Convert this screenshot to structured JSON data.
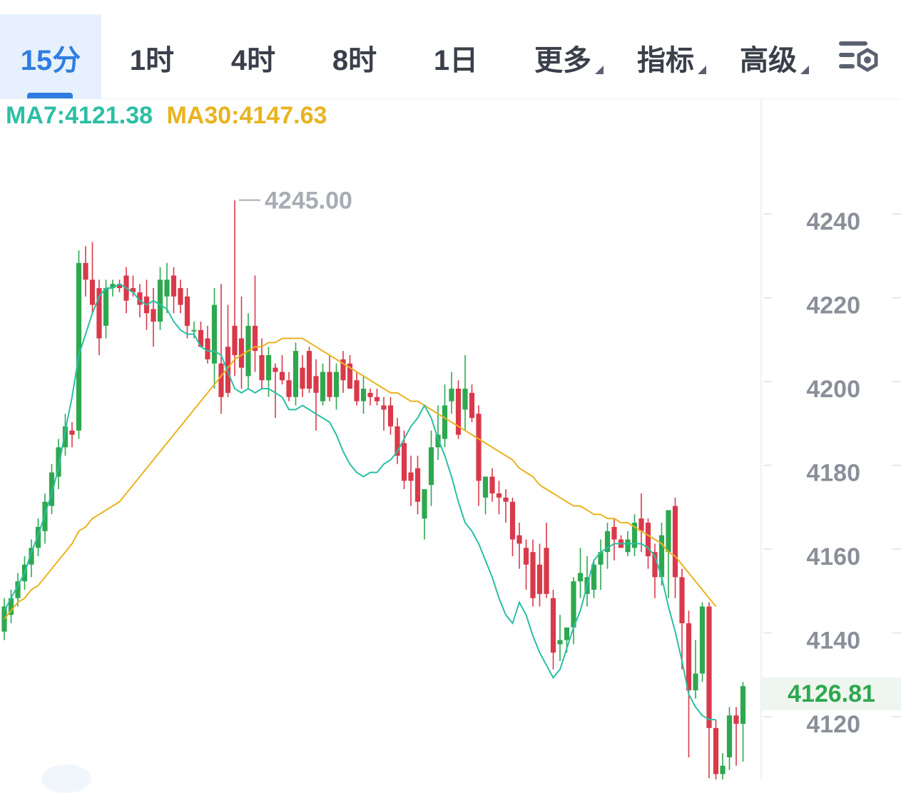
{
  "tabs": [
    {
      "label": "15分",
      "active": true
    },
    {
      "label": "1时"
    },
    {
      "label": "4时"
    },
    {
      "label": "8时"
    },
    {
      "label": "1日"
    },
    {
      "label": "更多",
      "dropdown": true
    },
    {
      "label": "指标",
      "dropdown": true
    },
    {
      "label": "高级",
      "dropdown": true
    }
  ],
  "settings_icon": "chart-settings-icon",
  "ma_legend": {
    "ma7": "MA7:4121.38",
    "ma30": "MA30:4147.63"
  },
  "colors": {
    "up": "#2ea84f",
    "down": "#d9394a",
    "ma7": "#2bbfa4",
    "ma30": "#e9b320",
    "active_tab": "#2f7de1"
  },
  "chart_data": {
    "type": "candlestick",
    "interval": "15分",
    "y_ticks": [
      4120,
      4140,
      4160,
      4180,
      4200,
      4220,
      4240
    ],
    "ylim": [
      4108,
      4252
    ],
    "last_price": "4126.81",
    "high_marker": "4245.00",
    "series": [
      {
        "name": "MA7",
        "values": [
          4147,
          4150,
          4153,
          4156,
          4161,
          4165,
          4170,
          4175,
          4181,
          4190,
          4198,
          4208,
          4213,
          4218,
          4222,
          4224,
          4224,
          4225,
          4224,
          4223,
          4221,
          4220,
          4221,
          4220,
          4219,
          4216,
          4214,
          4213,
          4213,
          4210,
          4209,
          4209,
          4208,
          4204,
          4200,
          4199,
          4200,
          4199,
          4200,
          4200,
          4199,
          4198,
          4195,
          4195,
          4196,
          4195,
          4194,
          4193,
          4192,
          4189,
          4185,
          4182,
          4180,
          4179,
          4180,
          4180,
          4182,
          4183,
          4185,
          4188,
          4191,
          4193,
          4196,
          4193,
          4188,
          4184,
          4179,
          4173,
          4168,
          4166,
          4163,
          4159,
          4155,
          4150,
          4146,
          4144,
          4149,
          4146,
          4141,
          4137,
          4134,
          4131,
          4133,
          4138,
          4143,
          4147,
          4153,
          4159,
          4161,
          4162,
          4163,
          4163,
          4163,
          4163,
          4163,
          4162,
          4160,
          4155,
          4148,
          4142,
          4135,
          4127,
          4124,
          4122,
          4121,
          4121
        ]
      },
      {
        "name": "MA30",
        "values": [
          4145,
          4147,
          4149,
          4150,
          4152,
          4153,
          4155,
          4157,
          4159,
          4161,
          4163,
          4166,
          4167,
          4169,
          4170,
          4171,
          4172,
          4173,
          4175,
          4177,
          4179,
          4181,
          4183,
          4185,
          4187,
          4189,
          4191,
          4193,
          4195,
          4197,
          4199,
          4201,
          4203,
          4205,
          4207,
          4208,
          4209,
          4210,
          4210,
          4211,
          4211,
          4212,
          4212,
          4212,
          4212,
          4211,
          4210,
          4209,
          4208,
          4207,
          4206,
          4205,
          4204,
          4203,
          4202,
          4201,
          4200,
          4199,
          4199,
          4198,
          4197,
          4197,
          4196,
          4195,
          4194,
          4193,
          4192,
          4191,
          4190,
          4189,
          4188,
          4187,
          4186,
          4185,
          4184,
          4183,
          4181,
          4180,
          4179,
          4177,
          4176,
          4175,
          4174,
          4173,
          4172,
          4172,
          4171,
          4170,
          4170,
          4169,
          4169,
          4168,
          4168,
          4167,
          4166,
          4165,
          4164,
          4163,
          4161,
          4160,
          4158,
          4156,
          4154,
          4152,
          4150,
          4148
        ]
      }
    ],
    "candles": [
      {
        "o": 4142,
        "h": 4150,
        "l": 4140,
        "c": 4148
      },
      {
        "o": 4146,
        "h": 4152,
        "l": 4144,
        "c": 4150
      },
      {
        "o": 4150,
        "h": 4156,
        "l": 4148,
        "c": 4154
      },
      {
        "o": 4154,
        "h": 4160,
        "l": 4152,
        "c": 4158
      },
      {
        "o": 4158,
        "h": 4164,
        "l": 4155,
        "c": 4162
      },
      {
        "o": 4162,
        "h": 4169,
        "l": 4160,
        "c": 4167
      },
      {
        "o": 4166,
        "h": 4175,
        "l": 4163,
        "c": 4173
      },
      {
        "o": 4172,
        "h": 4182,
        "l": 4170,
        "c": 4180
      },
      {
        "o": 4179,
        "h": 4188,
        "l": 4176,
        "c": 4186
      },
      {
        "o": 4186,
        "h": 4194,
        "l": 4184,
        "c": 4191
      },
      {
        "o": 4190,
        "h": 4192,
        "l": 4186,
        "c": 4189
      },
      {
        "o": 4190,
        "h": 4233,
        "l": 4188,
        "c": 4230
      },
      {
        "o": 4230,
        "h": 4234,
        "l": 4222,
        "c": 4226
      },
      {
        "o": 4226,
        "h": 4235,
        "l": 4218,
        "c": 4220
      },
      {
        "o": 4224,
        "h": 4226,
        "l": 4208,
        "c": 4212
      },
      {
        "o": 4215,
        "h": 4226,
        "l": 4212,
        "c": 4224
      },
      {
        "o": 4224,
        "h": 4226,
        "l": 4222,
        "c": 4225
      },
      {
        "o": 4225,
        "h": 4226,
        "l": 4223,
        "c": 4224
      },
      {
        "o": 4227,
        "h": 4229,
        "l": 4218,
        "c": 4221
      },
      {
        "o": 4224,
        "h": 4227,
        "l": 4222,
        "c": 4223
      },
      {
        "o": 4223,
        "h": 4225,
        "l": 4217,
        "c": 4220
      },
      {
        "o": 4222,
        "h": 4226,
        "l": 4214,
        "c": 4218
      },
      {
        "o": 4219,
        "h": 4224,
        "l": 4210,
        "c": 4216
      },
      {
        "o": 4216,
        "h": 4229,
        "l": 4214,
        "c": 4226
      },
      {
        "o": 4222,
        "h": 4230,
        "l": 4218,
        "c": 4226
      },
      {
        "o": 4227,
        "h": 4229,
        "l": 4218,
        "c": 4222
      },
      {
        "o": 4224,
        "h": 4226,
        "l": 4218,
        "c": 4220
      },
      {
        "o": 4222,
        "h": 4224,
        "l": 4212,
        "c": 4215
      },
      {
        "o": 4214,
        "h": 4216,
        "l": 4212,
        "c": 4214
      },
      {
        "o": 4214,
        "h": 4216,
        "l": 4210,
        "c": 4210
      },
      {
        "o": 4212,
        "h": 4215,
        "l": 4206,
        "c": 4207
      },
      {
        "o": 4206,
        "h": 4224,
        "l": 4200,
        "c": 4220
      },
      {
        "o": 4206,
        "h": 4225,
        "l": 4194,
        "c": 4198
      },
      {
        "o": 4210,
        "h": 4220,
        "l": 4198,
        "c": 4199
      },
      {
        "o": 4215,
        "h": 4245,
        "l": 4203,
        "c": 4208
      },
      {
        "o": 4212,
        "h": 4222,
        "l": 4200,
        "c": 4205
      },
      {
        "o": 4203,
        "h": 4218,
        "l": 4200,
        "c": 4215
      },
      {
        "o": 4215,
        "h": 4227,
        "l": 4204,
        "c": 4209
      },
      {
        "o": 4208,
        "h": 4212,
        "l": 4200,
        "c": 4202
      },
      {
        "o": 4202,
        "h": 4210,
        "l": 4198,
        "c": 4208
      },
      {
        "o": 4205,
        "h": 4206,
        "l": 4193,
        "c": 4204
      },
      {
        "o": 4204,
        "h": 4208,
        "l": 4201,
        "c": 4202
      },
      {
        "o": 4202,
        "h": 4204,
        "l": 4197,
        "c": 4198
      },
      {
        "o": 4198,
        "h": 4211,
        "l": 4196,
        "c": 4209
      },
      {
        "o": 4205,
        "h": 4208,
        "l": 4198,
        "c": 4200
      },
      {
        "o": 4209,
        "h": 4210,
        "l": 4199,
        "c": 4200
      },
      {
        "o": 4203,
        "h": 4207,
        "l": 4190,
        "c": 4199
      },
      {
        "o": 4197,
        "h": 4206,
        "l": 4196,
        "c": 4204
      },
      {
        "o": 4204,
        "h": 4208,
        "l": 4197,
        "c": 4198
      },
      {
        "o": 4198,
        "h": 4206,
        "l": 4195,
        "c": 4204
      },
      {
        "o": 4207,
        "h": 4209,
        "l": 4199,
        "c": 4202
      },
      {
        "o": 4206,
        "h": 4208,
        "l": 4200,
        "c": 4200
      },
      {
        "o": 4202,
        "h": 4204,
        "l": 4196,
        "c": 4197
      },
      {
        "o": 4197,
        "h": 4203,
        "l": 4194,
        "c": 4200
      },
      {
        "o": 4199,
        "h": 4200,
        "l": 4196,
        "c": 4198
      },
      {
        "o": 4198,
        "h": 4200,
        "l": 4196,
        "c": 4197
      },
      {
        "o": 4196,
        "h": 4198,
        "l": 4190,
        "c": 4195
      },
      {
        "o": 4196,
        "h": 4198,
        "l": 4189,
        "c": 4191
      },
      {
        "o": 4191,
        "h": 4193,
        "l": 4182,
        "c": 4184
      },
      {
        "o": 4187,
        "h": 4190,
        "l": 4176,
        "c": 4178
      },
      {
        "o": 4180,
        "h": 4184,
        "l": 4172,
        "c": 4178
      },
      {
        "o": 4181,
        "h": 4184,
        "l": 4170,
        "c": 4173
      },
      {
        "o": 4169,
        "h": 4176,
        "l": 4164,
        "c": 4176
      },
      {
        "o": 4177,
        "h": 4190,
        "l": 4172,
        "c": 4186
      },
      {
        "o": 4186,
        "h": 4196,
        "l": 4183,
        "c": 4189
      },
      {
        "o": 4188,
        "h": 4201,
        "l": 4186,
        "c": 4196
      },
      {
        "o": 4197,
        "h": 4204,
        "l": 4194,
        "c": 4200
      },
      {
        "o": 4200,
        "h": 4202,
        "l": 4188,
        "c": 4189
      },
      {
        "o": 4195,
        "h": 4208,
        "l": 4190,
        "c": 4200
      },
      {
        "o": 4199,
        "h": 4201,
        "l": 4192,
        "c": 4193
      },
      {
        "o": 4194,
        "h": 4196,
        "l": 4172,
        "c": 4178
      },
      {
        "o": 4174,
        "h": 4178,
        "l": 4170,
        "c": 4179
      },
      {
        "o": 4179,
        "h": 4181,
        "l": 4173,
        "c": 4175
      },
      {
        "o": 4175,
        "h": 4178,
        "l": 4170,
        "c": 4174
      },
      {
        "o": 4174,
        "h": 4176,
        "l": 4168,
        "c": 4173
      },
      {
        "o": 4173,
        "h": 4174,
        "l": 4160,
        "c": 4164
      },
      {
        "o": 4165,
        "h": 4168,
        "l": 4157,
        "c": 4163
      },
      {
        "o": 4162,
        "h": 4164,
        "l": 4152,
        "c": 4158
      },
      {
        "o": 4161,
        "h": 4164,
        "l": 4148,
        "c": 4150
      },
      {
        "o": 4158,
        "h": 4163,
        "l": 4148,
        "c": 4151
      },
      {
        "o": 4162,
        "h": 4168,
        "l": 4150,
        "c": 4151
      },
      {
        "o": 4150,
        "h": 4152,
        "l": 4133,
        "c": 4137
      },
      {
        "o": 4139,
        "h": 4146,
        "l": 4135,
        "c": 4140
      },
      {
        "o": 4140,
        "h": 4143,
        "l": 4137,
        "c": 4143
      },
      {
        "o": 4143,
        "h": 4155,
        "l": 4139,
        "c": 4154
      },
      {
        "o": 4154,
        "h": 4162,
        "l": 4150,
        "c": 4156
      },
      {
        "o": 4151,
        "h": 4160,
        "l": 4148,
        "c": 4155
      },
      {
        "o": 4152,
        "h": 4159,
        "l": 4150,
        "c": 4158
      },
      {
        "o": 4158,
        "h": 4164,
        "l": 4152,
        "c": 4161
      },
      {
        "o": 4161,
        "h": 4168,
        "l": 4157,
        "c": 4166
      },
      {
        "o": 4167,
        "h": 4169,
        "l": 4159,
        "c": 4164
      },
      {
        "o": 4164,
        "h": 4165,
        "l": 4162,
        "c": 4162
      },
      {
        "o": 4161,
        "h": 4166,
        "l": 4160,
        "c": 4164
      },
      {
        "o": 4162,
        "h": 4170,
        "l": 4160,
        "c": 4168
      },
      {
        "o": 4169,
        "h": 4175,
        "l": 4161,
        "c": 4166
      },
      {
        "o": 4168,
        "h": 4169,
        "l": 4157,
        "c": 4160
      },
      {
        "o": 4161,
        "h": 4163,
        "l": 4150,
        "c": 4155
      },
      {
        "o": 4155,
        "h": 4168,
        "l": 4153,
        "c": 4165
      },
      {
        "o": 4161,
        "h": 4170,
        "l": 4150,
        "c": 4171
      },
      {
        "o": 4172,
        "h": 4174,
        "l": 4150,
        "c": 4155
      },
      {
        "o": 4155,
        "h": 4157,
        "l": 4133,
        "c": 4144
      },
      {
        "o": 4144,
        "h": 4147,
        "l": 4112,
        "c": 4128
      },
      {
        "o": 4128,
        "h": 4140,
        "l": 4126,
        "c": 4132
      },
      {
        "o": 4132,
        "h": 4149,
        "l": 4130,
        "c": 4148
      },
      {
        "o": 4148,
        "h": 4149,
        "l": 4107,
        "c": 4119
      },
      {
        "o": 4119,
        "h": 4121,
        "l": 4105,
        "c": 4108
      },
      {
        "o": 4108,
        "h": 4113,
        "l": 4106,
        "c": 4110
      },
      {
        "o": 4112,
        "h": 4124,
        "l": 4109,
        "c": 4122
      },
      {
        "o": 4122,
        "h": 4124,
        "l": 4110,
        "c": 4120
      },
      {
        "o": 4120,
        "h": 4130,
        "l": 4111,
        "c": 4129
      }
    ]
  }
}
